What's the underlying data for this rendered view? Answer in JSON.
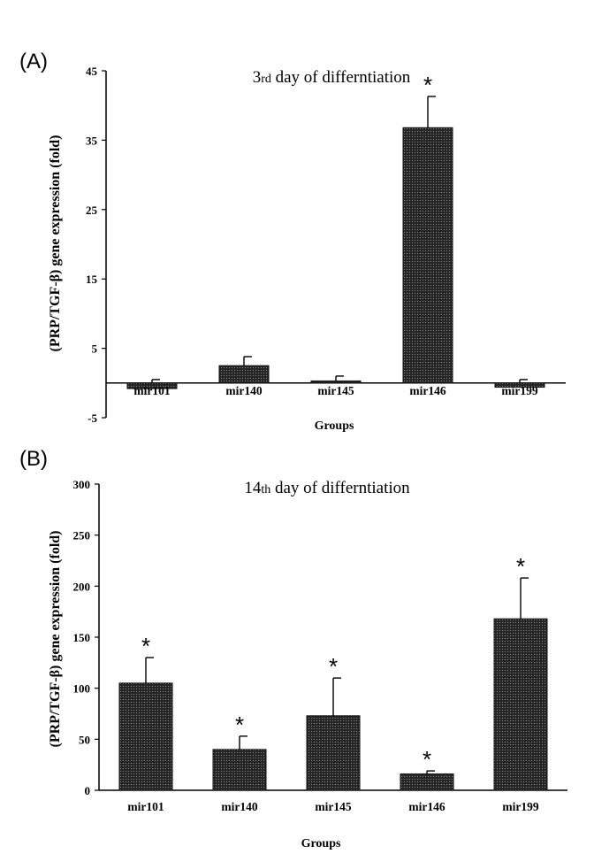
{
  "panels": [
    {
      "label": "(A)"
    },
    {
      "label": "(B)"
    }
  ],
  "chart_data": [
    {
      "type": "bar",
      "title_main": "3",
      "title_suffix": "rd",
      "title_rest": " day of differntiation",
      "xlabel": "Groups",
      "ylabel": "(PRP/TGF-β) gene expression (fold)",
      "categories": [
        "mir101",
        "mir140",
        "mir145",
        "mir146",
        "mir199"
      ],
      "values": [
        -0.8,
        2.5,
        0.3,
        36.8,
        -0.6
      ],
      "errors": [
        0.5,
        1.3,
        0.7,
        4.5,
        0.5
      ],
      "significant": [
        false,
        false,
        false,
        true,
        false
      ],
      "marker": "*",
      "ylim": [
        -5,
        45
      ],
      "yticks": [
        -5,
        5,
        15,
        25,
        35,
        45
      ],
      "bar_color": "#2b2b2b"
    },
    {
      "type": "bar",
      "title_main": "14",
      "title_suffix": "th",
      "title_rest": " day of differntiation",
      "xlabel": "Groups",
      "ylabel": "(PRP/TGF-β) gene expression (fold)",
      "categories": [
        "mir101",
        "mir140",
        "mir145",
        "mir146",
        "mir199"
      ],
      "values": [
        105,
        40,
        73,
        16,
        168
      ],
      "errors": [
        25,
        13,
        37,
        3,
        40
      ],
      "significant": [
        true,
        true,
        true,
        true,
        true
      ],
      "marker": "*",
      "ylim": [
        0,
        300
      ],
      "yticks": [
        0,
        50,
        100,
        150,
        200,
        250,
        300
      ],
      "bar_color": "#2b2b2b"
    }
  ]
}
